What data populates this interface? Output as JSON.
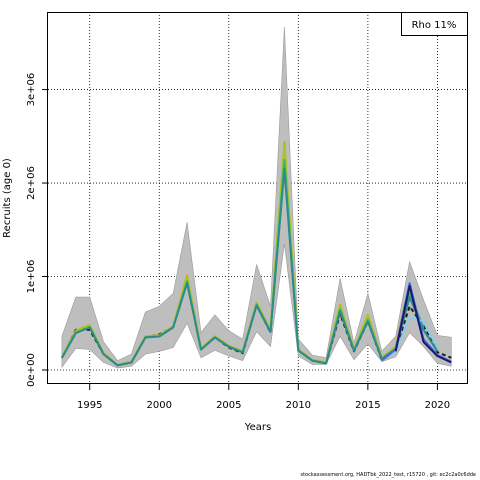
{
  "chart_data": {
    "type": "line",
    "xlabel": "Years",
    "ylabel": "Recruits (age 0)",
    "xlim": [
      1992,
      2022.2
    ],
    "ylim": [
      -150000,
      3830000
    ],
    "xticks": [
      1995,
      2000,
      2005,
      2010,
      2015,
      2020
    ],
    "yticks": [
      0,
      1000000,
      2000000,
      3000000
    ],
    "ytick_labels": [
      "0e+00",
      "1e+06",
      "2e+06",
      "3e+06"
    ],
    "grid": "dotted",
    "legend": {
      "position": "top-right",
      "text": "Rho 11%"
    },
    "band": {
      "x": [
        1993,
        1994,
        1995,
        1996,
        1997,
        1998,
        1999,
        2000,
        2001,
        2002,
        2003,
        2004,
        2005,
        2006,
        2007,
        2008,
        2009,
        2010,
        2011,
        2012,
        2013,
        2014,
        2015,
        2016,
        2017,
        2018,
        2019,
        2020,
        2021
      ],
      "upper": [
        360000,
        780000,
        780000,
        300000,
        100000,
        170000,
        620000,
        680000,
        820000,
        1580000,
        400000,
        590000,
        420000,
        330000,
        1130000,
        680000,
        3670000,
        330000,
        160000,
        130000,
        980000,
        290000,
        820000,
        200000,
        360000,
        1160000,
        750000,
        370000,
        350000
      ],
      "lower": [
        30000,
        230000,
        220000,
        80000,
        20000,
        40000,
        170000,
        200000,
        240000,
        500000,
        130000,
        210000,
        150000,
        100000,
        410000,
        250000,
        1350000,
        150000,
        60000,
        60000,
        360000,
        110000,
        280000,
        90000,
        140000,
        400000,
        250000,
        70000,
        40000
      ]
    },
    "series": [
      {
        "color": "#1e1e1e",
        "dash": "4,3",
        "x": [
          1993,
          1994,
          1995,
          1996,
          1997,
          1998,
          1999,
          2000,
          2001,
          2002,
          2003,
          2004,
          2005,
          2006,
          2007,
          2008,
          2009,
          2010,
          2011,
          2012,
          2013,
          2014,
          2015,
          2016,
          2017,
          2018,
          2019,
          2020,
          2021
        ],
        "values": [
          130000,
          430000,
          430000,
          170000,
          50000,
          80000,
          350000,
          380000,
          460000,
          940000,
          220000,
          350000,
          240000,
          180000,
          700000,
          400000,
          2200000,
          210000,
          100000,
          70000,
          600000,
          200000,
          520000,
          110000,
          220000,
          680000,
          470000,
          190000,
          130000
        ]
      },
      {
        "color": "#c7b200",
        "x": [
          1993,
          1994,
          1995,
          1996,
          1997,
          1998,
          1999,
          2000,
          2001,
          2002,
          2003,
          2004,
          2005,
          2006,
          2007,
          2008,
          2009,
          2010,
          2011,
          2012,
          2013,
          2014,
          2015,
          2016,
          2017,
          2018
        ],
        "values": [
          140000,
          420000,
          480000,
          180000,
          55000,
          90000,
          360000,
          370000,
          470000,
          1010000,
          230000,
          360000,
          260000,
          200000,
          720000,
          430000,
          2440000,
          220000,
          110000,
          80000,
          700000,
          220000,
          590000,
          130000,
          250000,
          920000
        ]
      },
      {
        "color": "#9acd32",
        "x": [
          1993,
          1994,
          1995,
          1996,
          1997,
          1998,
          1999,
          2000,
          2001,
          2002,
          2003,
          2004,
          2005,
          2006,
          2007,
          2008,
          2009,
          2010,
          2011,
          2012,
          2013,
          2014,
          2015,
          2016,
          2017
        ],
        "values": [
          135000,
          410000,
          470000,
          175000,
          52000,
          85000,
          355000,
          365000,
          465000,
          980000,
          225000,
          355000,
          255000,
          195000,
          710000,
          420000,
          2380000,
          215000,
          105000,
          75000,
          680000,
          215000,
          570000,
          125000,
          240000
        ]
      },
      {
        "color": "#3cb371",
        "x": [
          1993,
          1994,
          1995,
          1996,
          1997,
          1998,
          1999,
          2000,
          2001,
          2002,
          2003,
          2004,
          2005,
          2006,
          2007,
          2008,
          2009,
          2010,
          2011,
          2012,
          2013,
          2014,
          2015,
          2016,
          2017,
          2018,
          2019
        ],
        "values": [
          130000,
          400000,
          460000,
          170000,
          50000,
          80000,
          350000,
          360000,
          460000,
          950000,
          220000,
          350000,
          250000,
          190000,
          700000,
          410000,
          2250000,
          210000,
          100000,
          70000,
          650000,
          210000,
          540000,
          120000,
          230000,
          820000,
          450000
        ]
      },
      {
        "color": "#2e8b8b",
        "x": [
          1993,
          1994,
          1995,
          1996,
          1997,
          1998,
          1999,
          2000,
          2001,
          2002,
          2003,
          2004,
          2005,
          2006,
          2007,
          2008,
          2009,
          2010,
          2011,
          2012,
          2013,
          2014,
          2015,
          2016,
          2017,
          2018,
          2019,
          2020
        ],
        "values": [
          128000,
          395000,
          455000,
          168000,
          50000,
          80000,
          348000,
          358000,
          455000,
          930000,
          218000,
          348000,
          248000,
          188000,
          690000,
          405000,
          2150000,
          208000,
          100000,
          70000,
          630000,
          205000,
          520000,
          115000,
          225000,
          780000,
          430000,
          200000
        ]
      },
      {
        "color": "#87ceeb",
        "x": [
          2016,
          2017,
          2018,
          2019,
          2020
        ],
        "values": [
          100000,
          200000,
          560000,
          520000,
          240000
        ]
      },
      {
        "color": "#4169e1",
        "x": [
          2016,
          2017,
          2018,
          2019,
          2020,
          2021
        ],
        "values": [
          100000,
          220000,
          930000,
          330000,
          160000,
          90000
        ]
      },
      {
        "color": "#191970",
        "x": [
          2017,
          2018,
          2019,
          2020,
          2021
        ],
        "values": [
          200000,
          900000,
          300000,
          150000,
          80000
        ]
      }
    ]
  },
  "footer": {
    "text": "stockassessment.org, HADTbk_2022_test, r15720 , git: ec2c2a0c6dde"
  }
}
